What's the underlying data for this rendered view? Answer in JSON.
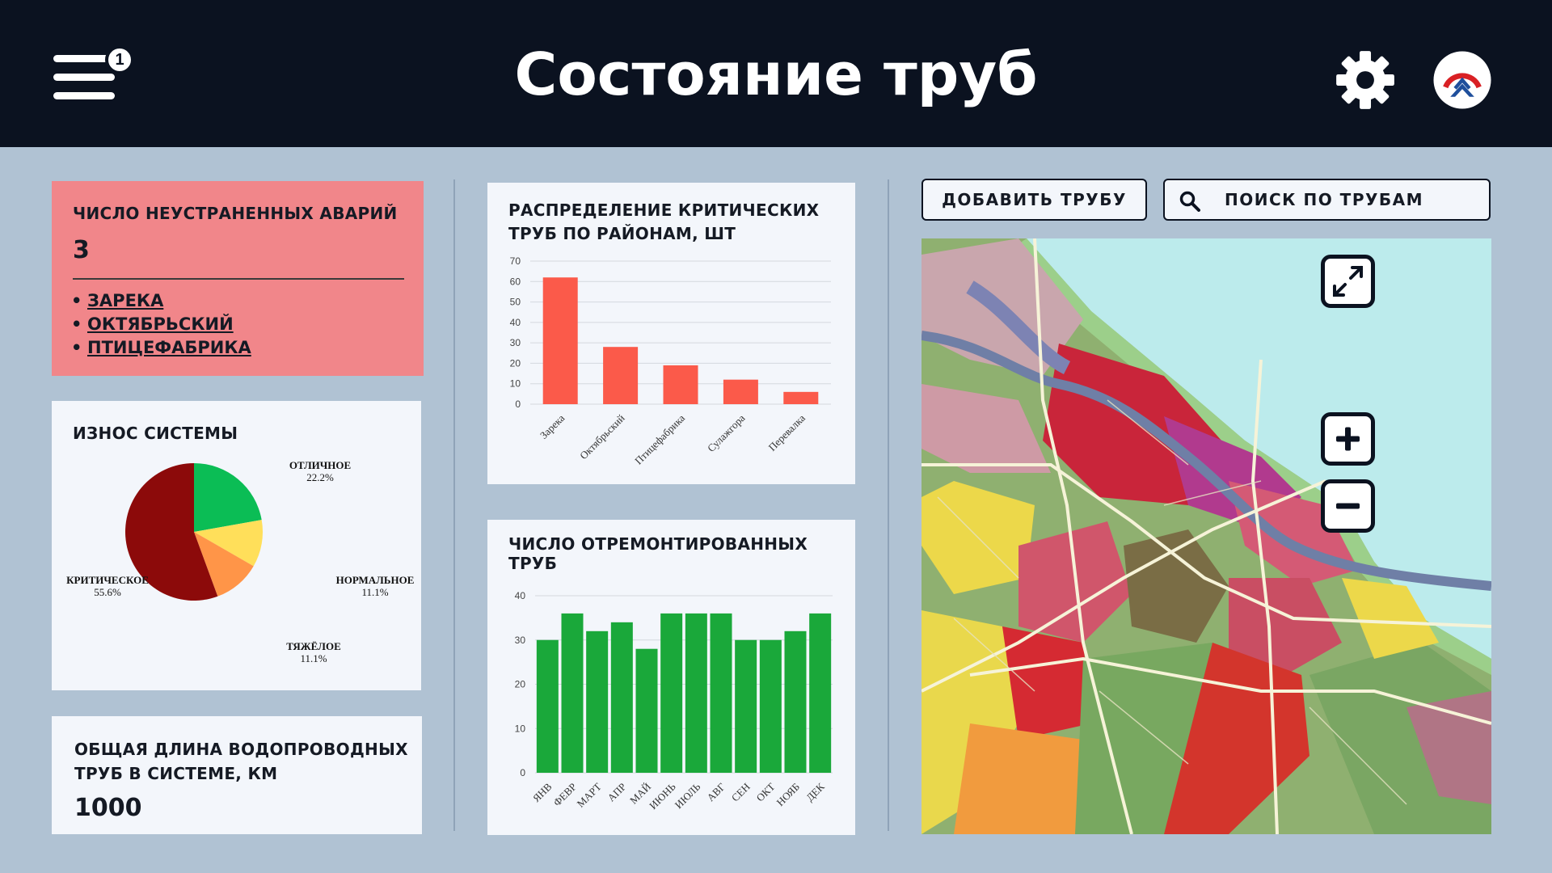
{
  "header": {
    "title": "Состояние труб",
    "notification_count": "1",
    "icons": [
      "menu-icon",
      "gear-icon",
      "logo"
    ]
  },
  "alarms": {
    "title": "ЧИСЛО НЕУСТРАНЕННЫХ АВАРИЙ",
    "count": "3",
    "districts": [
      "ЗАРЕКА",
      "ОКТЯБРЬСКИЙ",
      "ПТИЦЕФАБРИКА"
    ]
  },
  "wear": {
    "title": "ИЗНОС СИСТЕМЫ",
    "slices": [
      {
        "label": "ОТЛИЧНОЕ",
        "pct": "22.2%",
        "value": 22.2,
        "color": "#0bbd55"
      },
      {
        "label": "НОРМАЛЬНОЕ",
        "pct": "11.1%",
        "value": 11.1,
        "color": "#ffdf5a"
      },
      {
        "label": "ТЯЖЁЛОЕ",
        "pct": "11.1%",
        "value": 11.1,
        "color": "#ff9548"
      },
      {
        "label": "КРИТИЧЕСКОЕ",
        "pct": "55.6%",
        "value": 55.6,
        "color": "#8c0a0a"
      }
    ]
  },
  "length": {
    "title": "ОБЩАЯ ДЛИНА ВОДОПРОВОДНЫХ ТРУБ В СИСТЕМЕ, КМ",
    "value": "1000"
  },
  "chart_data": [
    {
      "type": "bar",
      "title": "РАСПРЕДЕЛЕНИЕ КРИТИЧЕСКИХ ТРУБ ПО РАЙОНАМ, ШТ",
      "categories": [
        "Зарека",
        "Октябрьский",
        "Птицефабрика",
        "Сулажгора",
        "Перевалка"
      ],
      "values": [
        62,
        28,
        19,
        12,
        6
      ],
      "ylim": [
        0,
        70
      ],
      "yticks": [
        0,
        10,
        20,
        30,
        40,
        50,
        60,
        70
      ],
      "color": "#fb5a4a",
      "grid": true
    },
    {
      "type": "bar",
      "title": "ЧИСЛО ОТРЕМОНТИРОВАННЫХ ТРУБ",
      "categories": [
        "ЯНВ",
        "ФЕВР",
        "МАРТ",
        "АПР",
        "МАЙ",
        "ИЮНЬ",
        "ИЮЛЬ",
        "АВГ",
        "СЕН",
        "ОКТ",
        "НОЯБ",
        "ДЕК"
      ],
      "values": [
        30,
        36,
        32,
        34,
        28,
        36,
        36,
        36,
        30,
        30,
        32,
        36
      ],
      "ylim": [
        0,
        40
      ],
      "yticks": [
        0,
        10,
        20,
        30,
        40
      ],
      "color": "#1aa83a",
      "grid": true
    }
  ],
  "actions": {
    "add_pipe": "ДОБАВИТЬ ТРУБУ",
    "search_pipes": "ПОИСК ПО ТРУБАМ"
  },
  "map": {
    "controls": [
      "expand-icon",
      "zoom-in-icon",
      "zoom-out-icon"
    ]
  }
}
